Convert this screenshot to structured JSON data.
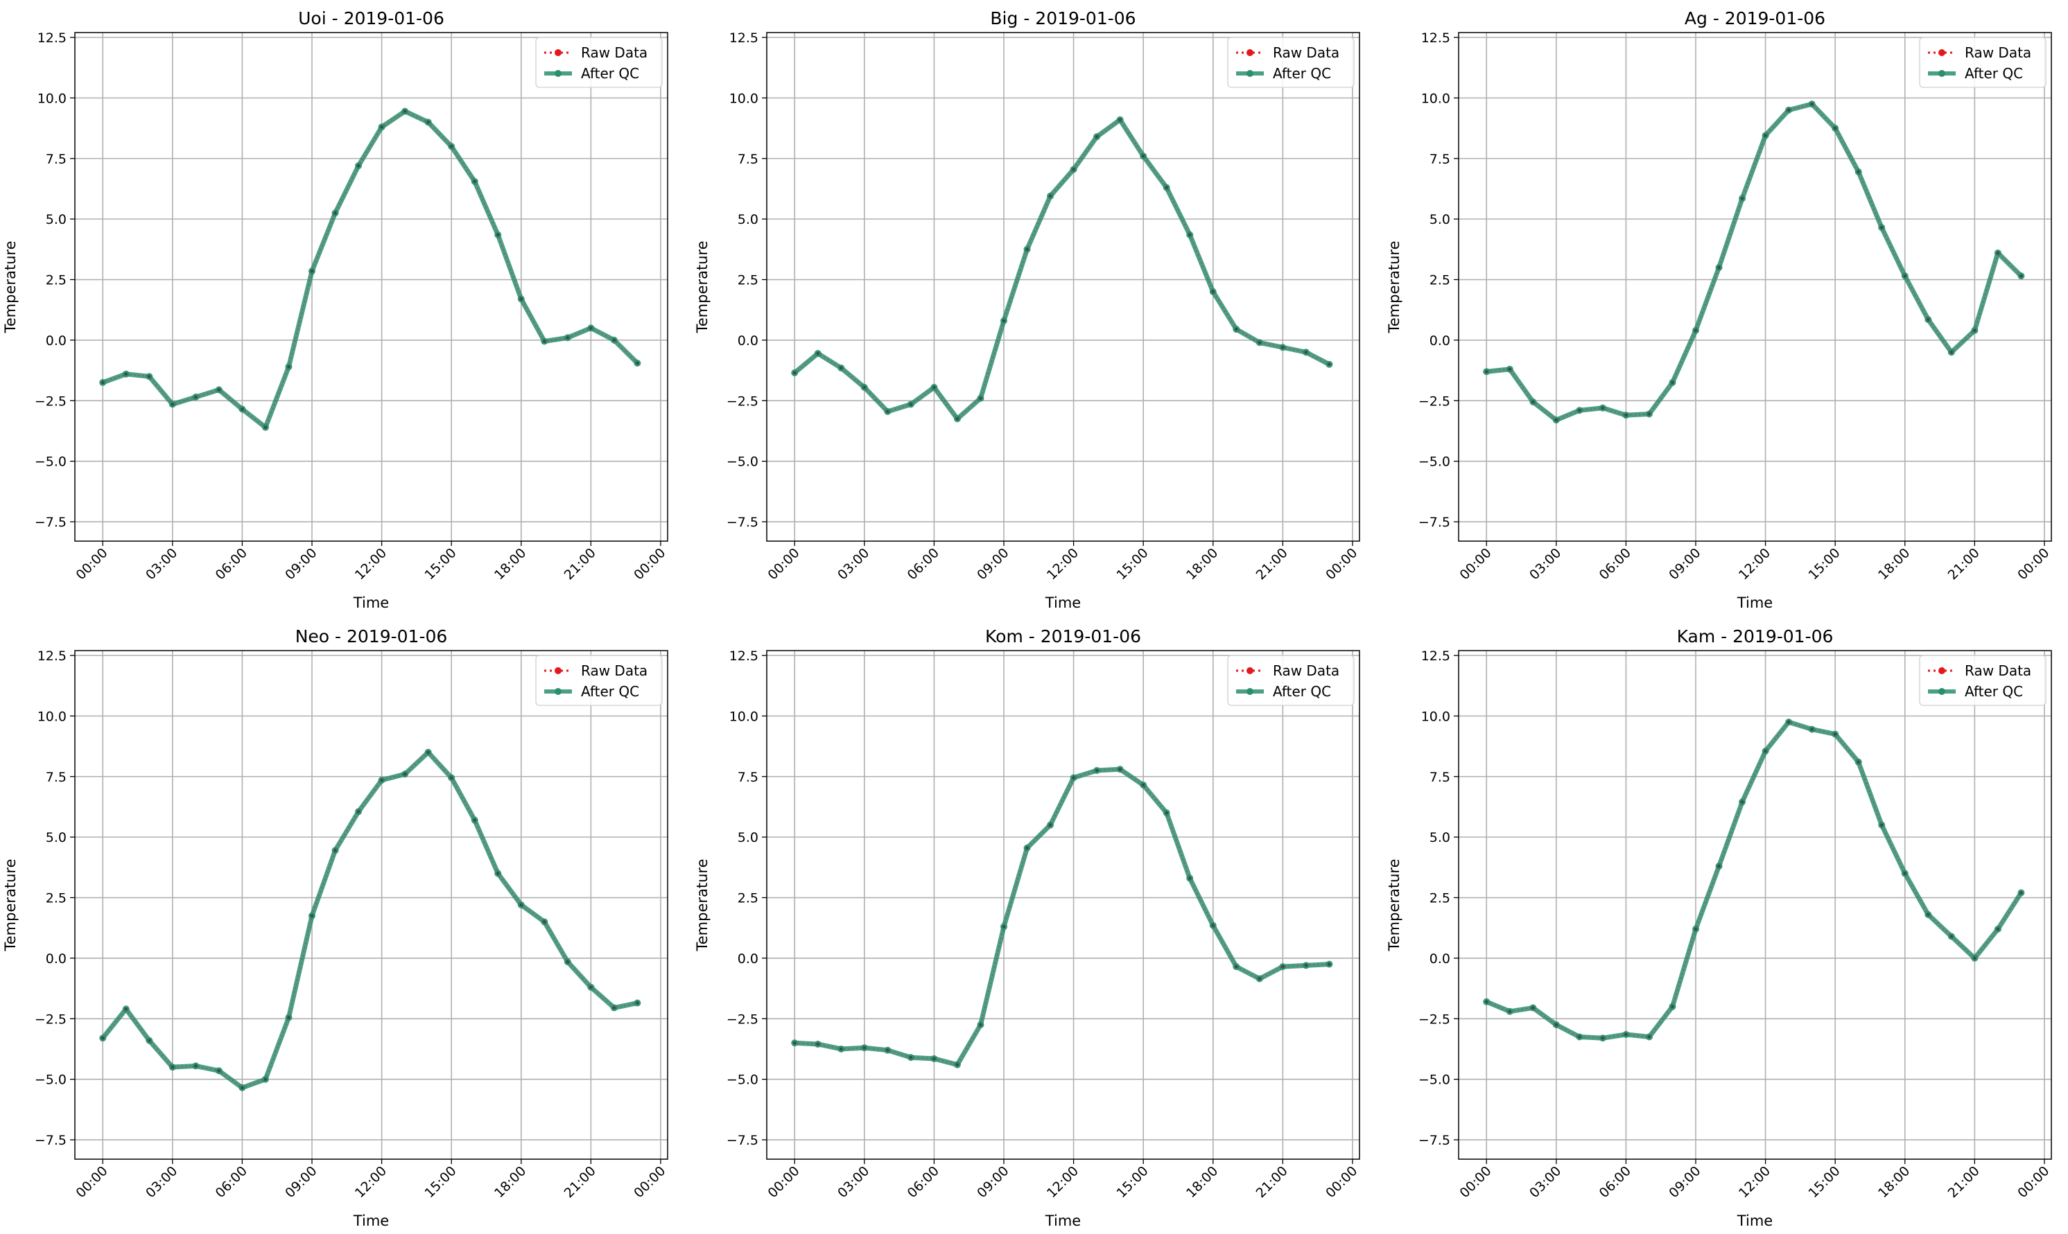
{
  "figure": {
    "colors": {
      "raw": "#e3191c",
      "qc": "#2a8f6f",
      "grid": "#b0b0b0"
    }
  },
  "chart_data": [
    {
      "type": "line",
      "title": "Uoi - 2019-01-06",
      "xlabel": "Time",
      "ylabel": "Temperature",
      "xticks": [
        "00:00",
        "03:00",
        "06:00",
        "09:00",
        "12:00",
        "15:00",
        "18:00",
        "21:00",
        "00:00"
      ],
      "yticks": [
        "−7.5",
        "−5.0",
        "−2.5",
        "0.0",
        "2.5",
        "5.0",
        "7.5",
        "10.0",
        "12.5"
      ],
      "ylim": [
        -8.3,
        12.7
      ],
      "xlim_hours": [
        -1.2,
        24.3
      ],
      "grid": true,
      "legend": "upper right",
      "x_hours": [
        0,
        1,
        2,
        3,
        4,
        5,
        6,
        7,
        8,
        9,
        10,
        11,
        12,
        13,
        14,
        15,
        16,
        17,
        18,
        19,
        20,
        21,
        22,
        23
      ],
      "series": [
        {
          "name": "Raw Data",
          "values": [
            -1.75,
            -1.4,
            -1.5,
            -2.65,
            -2.35,
            -2.05,
            -2.85,
            -3.6,
            -1.1,
            2.85,
            5.25,
            7.2,
            8.8,
            9.45,
            9.0,
            8.0,
            6.55,
            4.35,
            1.7,
            -0.05,
            0.1,
            0.5,
            0.0,
            -0.95
          ]
        },
        {
          "name": "After QC",
          "values": [
            -1.75,
            -1.4,
            -1.5,
            -2.65,
            -2.35,
            -2.05,
            -2.85,
            -3.6,
            -1.1,
            2.85,
            5.25,
            7.2,
            8.8,
            9.45,
            9.0,
            8.0,
            6.55,
            4.35,
            1.7,
            -0.05,
            0.1,
            0.5,
            0.0,
            -0.95
          ]
        }
      ]
    },
    {
      "type": "line",
      "title": "Big - 2019-01-06",
      "xlabel": "Time",
      "ylabel": "Temperature",
      "xticks": [
        "00:00",
        "03:00",
        "06:00",
        "09:00",
        "12:00",
        "15:00",
        "18:00",
        "21:00",
        "00:00"
      ],
      "yticks": [
        "−7.5",
        "−5.0",
        "−2.5",
        "0.0",
        "2.5",
        "5.0",
        "7.5",
        "10.0",
        "12.5"
      ],
      "ylim": [
        -8.3,
        12.7
      ],
      "xlim_hours": [
        -1.2,
        24.3
      ],
      "grid": true,
      "legend": "upper right",
      "x_hours": [
        0,
        1,
        2,
        3,
        4,
        5,
        6,
        7,
        8,
        9,
        10,
        11,
        12,
        13,
        14,
        15,
        16,
        17,
        18,
        19,
        20,
        21,
        22,
        23
      ],
      "series": [
        {
          "name": "Raw Data",
          "values": [
            -1.35,
            -0.55,
            -1.15,
            -1.95,
            -2.95,
            -2.65,
            -1.95,
            -3.25,
            -2.4,
            0.8,
            3.75,
            5.95,
            7.05,
            8.4,
            9.1,
            7.6,
            6.3,
            4.35,
            2.0,
            0.45,
            -0.1,
            -0.3,
            -0.5,
            -1.0
          ]
        },
        {
          "name": "After QC",
          "values": [
            -1.35,
            -0.55,
            -1.15,
            -1.95,
            -2.95,
            -2.65,
            -1.95,
            -3.25,
            -2.4,
            0.8,
            3.75,
            5.95,
            7.05,
            8.4,
            9.1,
            7.6,
            6.3,
            4.35,
            2.0,
            0.45,
            -0.1,
            -0.3,
            -0.5,
            -1.0
          ]
        }
      ]
    },
    {
      "type": "line",
      "title": "Ag - 2019-01-06",
      "xlabel": "Time",
      "ylabel": "Temperature",
      "xticks": [
        "00:00",
        "03:00",
        "06:00",
        "09:00",
        "12:00",
        "15:00",
        "18:00",
        "21:00",
        "00:00"
      ],
      "yticks": [
        "−7.5",
        "−5.0",
        "−2.5",
        "0.0",
        "2.5",
        "5.0",
        "7.5",
        "10.0",
        "12.5"
      ],
      "ylim": [
        -8.3,
        12.7
      ],
      "xlim_hours": [
        -1.2,
        24.3
      ],
      "grid": true,
      "legend": "upper right",
      "x_hours": [
        0,
        1,
        2,
        3,
        4,
        5,
        6,
        7,
        8,
        9,
        10,
        11,
        12,
        13,
        14,
        15,
        16,
        17,
        18,
        19,
        20,
        21,
        22,
        23
      ],
      "series": [
        {
          "name": "Raw Data",
          "values": [
            -1.3,
            -1.2,
            -2.55,
            -3.3,
            -2.9,
            -2.8,
            -3.1,
            -3.05,
            -1.75,
            0.4,
            3.0,
            5.85,
            8.45,
            9.5,
            9.75,
            8.75,
            6.95,
            4.65,
            2.65,
            0.85,
            -0.5,
            0.4,
            3.6,
            2.65
          ]
        },
        {
          "name": "After QC",
          "values": [
            -1.3,
            -1.2,
            -2.55,
            -3.3,
            -2.9,
            -2.8,
            -3.1,
            -3.05,
            -1.75,
            0.4,
            3.0,
            5.85,
            8.45,
            9.5,
            9.75,
            8.75,
            6.95,
            4.65,
            2.65,
            0.85,
            -0.5,
            0.4,
            3.6,
            2.65
          ]
        }
      ]
    },
    {
      "type": "line",
      "title": "Neo - 2019-01-06",
      "xlabel": "Time",
      "ylabel": "Temperature",
      "xticks": [
        "00:00",
        "03:00",
        "06:00",
        "09:00",
        "12:00",
        "15:00",
        "18:00",
        "21:00",
        "00:00"
      ],
      "yticks": [
        "−7.5",
        "−5.0",
        "−2.5",
        "0.0",
        "2.5",
        "5.0",
        "7.5",
        "10.0",
        "12.5"
      ],
      "ylim": [
        -8.3,
        12.7
      ],
      "xlim_hours": [
        -1.2,
        24.3
      ],
      "grid": true,
      "legend": "upper right",
      "x_hours": [
        0,
        1,
        2,
        3,
        4,
        5,
        6,
        7,
        8,
        9,
        10,
        11,
        12,
        13,
        14,
        15,
        16,
        17,
        18,
        19,
        20,
        21,
        22,
        23
      ],
      "series": [
        {
          "name": "Raw Data",
          "values": [
            -3.3,
            -2.1,
            -3.4,
            -4.5,
            -4.45,
            -4.65,
            -5.35,
            -5.0,
            -2.45,
            1.75,
            4.45,
            6.05,
            7.35,
            7.6,
            8.5,
            7.45,
            5.7,
            3.5,
            2.2,
            1.5,
            -0.15,
            -1.2,
            -2.05,
            -1.85
          ]
        },
        {
          "name": "After QC",
          "values": [
            -3.3,
            -2.1,
            -3.4,
            -4.5,
            -4.45,
            -4.65,
            -5.35,
            -5.0,
            -2.45,
            1.75,
            4.45,
            6.05,
            7.35,
            7.6,
            8.5,
            7.45,
            5.7,
            3.5,
            2.2,
            1.5,
            -0.15,
            -1.2,
            -2.05,
            -1.85
          ]
        }
      ]
    },
    {
      "type": "line",
      "title": "Kom - 2019-01-06",
      "xlabel": "Time",
      "ylabel": "Temperature",
      "xticks": [
        "00:00",
        "03:00",
        "06:00",
        "09:00",
        "12:00",
        "15:00",
        "18:00",
        "21:00",
        "00:00"
      ],
      "yticks": [
        "−7.5",
        "−5.0",
        "−2.5",
        "0.0",
        "2.5",
        "5.0",
        "7.5",
        "10.0",
        "12.5"
      ],
      "ylim": [
        -8.3,
        12.7
      ],
      "xlim_hours": [
        -1.2,
        24.3
      ],
      "grid": true,
      "legend": "upper right",
      "x_hours": [
        0,
        1,
        2,
        3,
        4,
        5,
        6,
        7,
        8,
        9,
        10,
        11,
        12,
        13,
        14,
        15,
        16,
        17,
        18,
        19,
        20,
        21,
        22,
        23
      ],
      "series": [
        {
          "name": "Raw Data",
          "values": [
            -3.5,
            -3.55,
            -3.75,
            -3.7,
            -3.8,
            -4.1,
            -4.15,
            -4.4,
            -2.75,
            1.3,
            4.55,
            5.5,
            7.45,
            7.75,
            7.8,
            7.15,
            6.0,
            3.3,
            1.35,
            -0.35,
            -0.85,
            -0.35,
            -0.3,
            -0.25
          ]
        },
        {
          "name": "After QC",
          "values": [
            -3.5,
            -3.55,
            -3.75,
            -3.7,
            -3.8,
            -4.1,
            -4.15,
            -4.4,
            -2.75,
            1.3,
            4.55,
            5.5,
            7.45,
            7.75,
            7.8,
            7.15,
            6.0,
            3.3,
            1.35,
            -0.35,
            -0.85,
            -0.35,
            -0.3,
            -0.25
          ]
        }
      ]
    },
    {
      "type": "line",
      "title": "Kam - 2019-01-06",
      "xlabel": "Time",
      "ylabel": "Temperature",
      "xticks": [
        "00:00",
        "03:00",
        "06:00",
        "09:00",
        "12:00",
        "15:00",
        "18:00",
        "21:00",
        "00:00"
      ],
      "yticks": [
        "−7.5",
        "−5.0",
        "−2.5",
        "0.0",
        "2.5",
        "5.0",
        "7.5",
        "10.0",
        "12.5"
      ],
      "ylim": [
        -8.3,
        12.7
      ],
      "xlim_hours": [
        -1.2,
        24.3
      ],
      "grid": true,
      "legend": "upper right",
      "x_hours": [
        0,
        1,
        2,
        3,
        4,
        5,
        6,
        7,
        8,
        9,
        10,
        11,
        12,
        13,
        14,
        15,
        16,
        17,
        18,
        19,
        20,
        21,
        22,
        23
      ],
      "series": [
        {
          "name": "Raw Data",
          "values": [
            -1.8,
            -2.2,
            -2.05,
            -2.75,
            -3.25,
            -3.3,
            -3.15,
            -3.25,
            -2.0,
            1.2,
            3.8,
            6.45,
            8.55,
            9.75,
            9.45,
            9.25,
            8.1,
            5.5,
            3.5,
            1.8,
            0.9,
            0.0,
            1.2,
            2.7
          ]
        },
        {
          "name": "After QC",
          "values": [
            -1.8,
            -2.2,
            -2.05,
            -2.75,
            -3.25,
            -3.3,
            -3.15,
            -3.25,
            -2.0,
            1.2,
            3.8,
            6.45,
            8.55,
            9.75,
            9.45,
            9.25,
            8.1,
            5.5,
            3.5,
            1.8,
            0.9,
            0.0,
            1.2,
            2.7
          ]
        }
      ]
    }
  ]
}
